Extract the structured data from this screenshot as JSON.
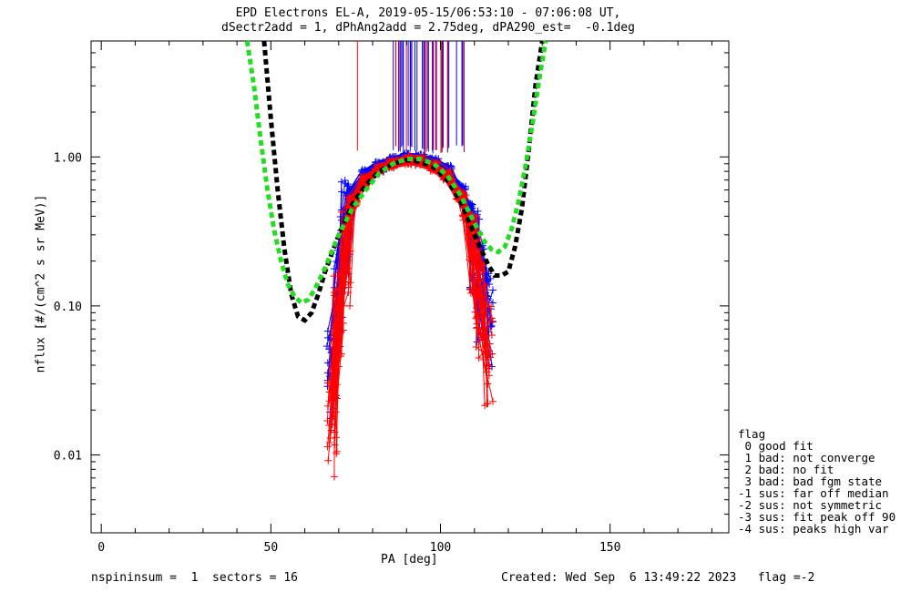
{
  "title_line1": "EPD Electrons EL-A, 2019-05-15/06:53:10 - 07:06:08 UT,",
  "title_line2": "dSectr2add = 1, dPhAng2add = 2.75deg, dPA290_est=  -0.1deg",
  "footer_left": "nspininsum =  1  sectors = 16",
  "footer_right": "Created: Wed Sep  6 13:49:22 2023   flag =-2",
  "legend": {
    "title": "flag",
    "items": [
      " 0 good fit",
      " 1 bad: not converge",
      " 2 bad: no fit",
      " 3 bad: bad fgm state",
      "-1 sus: far off median",
      "-2 sus: not symmetric",
      "-3 sus: fit peak off 90",
      "-4 sus: peaks high var"
    ]
  },
  "chart_data": {
    "type": "scatter",
    "xlabel": "PA [deg]",
    "ylabel": "nflux [#/(cm^2 s sr MeV)]",
    "xlim": [
      -3,
      185
    ],
    "ylim": [
      0.003,
      6
    ],
    "yscale": "log",
    "x_ticks": [
      0,
      50,
      100,
      150
    ],
    "x_tick_labels": [
      "0",
      "50",
      "100",
      "150"
    ],
    "y_ticks": [
      0.01,
      0.1,
      1.0
    ],
    "y_tick_labels": [
      "0.01",
      "0.10",
      "1.00"
    ],
    "series": [
      {
        "color": "#000000",
        "style": "dashed",
        "x": [
          48,
          50,
          52,
          54,
          56,
          58,
          60,
          62,
          64,
          66,
          70,
          74,
          78,
          82,
          86,
          90,
          94,
          98,
          102,
          106,
          110,
          114,
          116,
          118,
          120,
          122,
          124,
          126,
          128,
          130
        ],
        "y": [
          6.0,
          1.8,
          0.6,
          0.24,
          0.12,
          0.085,
          0.08,
          0.09,
          0.12,
          0.17,
          0.3,
          0.48,
          0.65,
          0.8,
          0.9,
          0.95,
          0.93,
          0.85,
          0.7,
          0.5,
          0.3,
          0.19,
          0.16,
          0.16,
          0.17,
          0.25,
          0.45,
          1.1,
          3.0,
          6.0
        ]
      },
      {
        "color": "#22dd22",
        "style": "dashed",
        "x": [
          43,
          45,
          47,
          49,
          51,
          53,
          55,
          57,
          59,
          61,
          63,
          66,
          70,
          74,
          78,
          82,
          86,
          90,
          94,
          98,
          102,
          106,
          110,
          113,
          115,
          117,
          119,
          121,
          123,
          125,
          127,
          129,
          131
        ],
        "y": [
          6.0,
          3.0,
          1.3,
          0.6,
          0.32,
          0.2,
          0.14,
          0.115,
          0.105,
          0.11,
          0.13,
          0.18,
          0.3,
          0.45,
          0.6,
          0.78,
          0.9,
          0.97,
          0.97,
          0.9,
          0.75,
          0.55,
          0.36,
          0.27,
          0.24,
          0.23,
          0.25,
          0.33,
          0.5,
          0.85,
          1.6,
          3.2,
          6.0
        ]
      },
      {
        "color": "#0000ff",
        "style": "data-sample",
        "x": [
          68,
          70,
          72,
          74,
          78,
          82,
          86,
          90,
          94,
          98,
          102,
          106,
          108,
          110,
          112,
          114
        ],
        "y": [
          0.035,
          0.12,
          0.35,
          0.55,
          0.75,
          0.85,
          0.92,
          0.97,
          0.96,
          0.9,
          0.8,
          0.6,
          0.45,
          0.25,
          0.14,
          0.09
        ]
      },
      {
        "color": "#ff0000",
        "style": "data-sample",
        "x": [
          68,
          70,
          72,
          74,
          78,
          82,
          86,
          90,
          94,
          98,
          102,
          106,
          108,
          110,
          112,
          114
        ],
        "y": [
          0.016,
          0.08,
          0.25,
          0.5,
          0.7,
          0.82,
          0.9,
          0.95,
          0.94,
          0.86,
          0.75,
          0.55,
          0.4,
          0.2,
          0.1,
          0.05
        ]
      }
    ]
  }
}
